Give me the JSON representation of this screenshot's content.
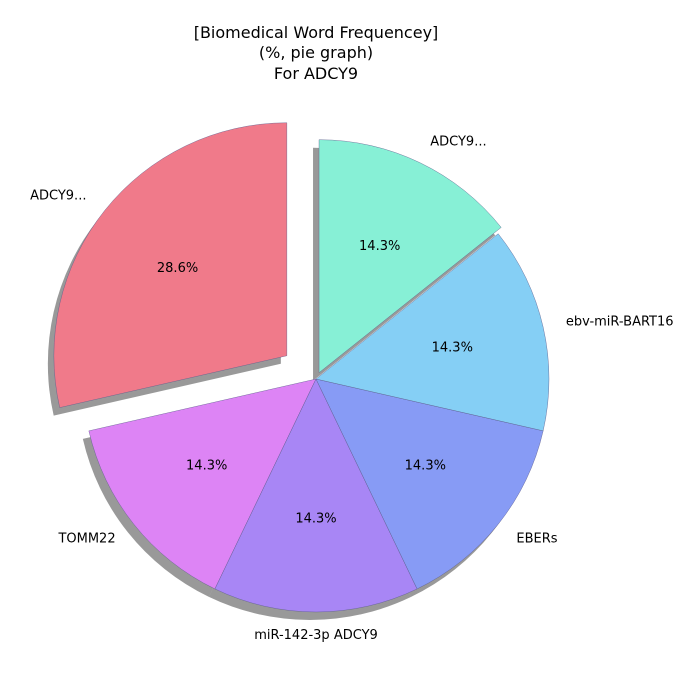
{
  "chart_data": {
    "type": "pie",
    "title_lines": [
      "[Biomedical Word Frequencey]",
      "(%, pie graph)",
      "For ADCY9"
    ],
    "slices": [
      {
        "label": "ADCY9...",
        "value": 28.6,
        "pct_text": "28.6%",
        "color": "#f07a8a",
        "exploded": true
      },
      {
        "label": "TOMM22",
        "value": 14.3,
        "pct_text": "14.3%",
        "color": "#dd84f5"
      },
      {
        "label": "miR-142-3p ADCY9",
        "value": 14.3,
        "pct_text": "14.3%",
        "color": "#a886f5"
      },
      {
        "label": "EBERs",
        "value": 14.3,
        "pct_text": "14.3%",
        "color": "#879bf5"
      },
      {
        "label": "ebv-miR-BART16",
        "value": 14.3,
        "pct_text": "14.3%",
        "color": "#85cff5"
      },
      {
        "label": "ADCY9...",
        "value": 14.3,
        "pct_text": "14.3%",
        "color": "#87f0d6",
        "exploded": true
      }
    ],
    "start_angle_deg": 90,
    "direction": "counterclockwise",
    "shadow": true
  }
}
